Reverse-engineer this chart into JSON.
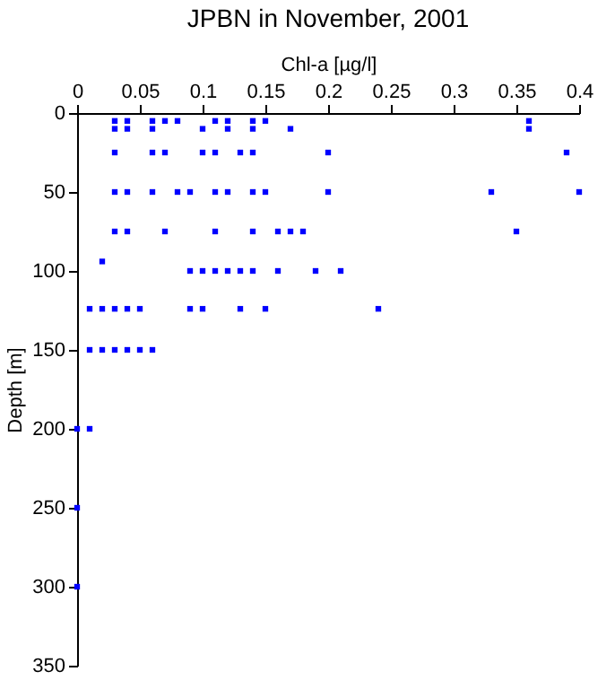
{
  "chart_data": {
    "type": "scatter",
    "title": "JPBN in November, 2001",
    "xlabel": "Chl-a [µg/l]",
    "ylabel": "Depth [m]",
    "xlim": [
      0,
      0.4
    ],
    "xticks": [
      0,
      0.05,
      0.1,
      0.15,
      0.2,
      0.25,
      0.3,
      0.35,
      0.4
    ],
    "ylim": [
      350,
      0
    ],
    "yticks": [
      0,
      50,
      100,
      150,
      200,
      250,
      300,
      350
    ],
    "marker": "square",
    "series": [
      {
        "color": "#0000ff",
        "x": [
          0.03,
          0.04,
          0.06,
          0.07,
          0.08,
          0.11,
          0.12,
          0.14,
          0.15,
          0.36,
          0.03,
          0.04,
          0.06,
          0.1,
          0.12,
          0.14,
          0.17,
          0.36,
          0.03,
          0.06,
          0.07,
          0.1,
          0.11,
          0.13,
          0.14,
          0.2,
          0.39,
          0.03,
          0.04,
          0.06,
          0.08,
          0.09,
          0.11,
          0.12,
          0.14,
          0.15,
          0.2,
          0.33,
          0.4,
          0.03,
          0.04,
          0.07,
          0.11,
          0.14,
          0.16,
          0.17,
          0.18,
          0.35,
          0.02,
          0.09,
          0.1,
          0.11,
          0.12,
          0.13,
          0.14,
          0.16,
          0.19,
          0.21,
          0.01,
          0.02,
          0.03,
          0.04,
          0.05,
          0.09,
          0.1,
          0.13,
          0.15,
          0.24,
          0.01,
          0.02,
          0.03,
          0.04,
          0.05,
          0.06,
          0,
          0.01,
          0,
          0
        ],
        "values": [
          5,
          5,
          5,
          5,
          5,
          5,
          5,
          5,
          5,
          5,
          10,
          10,
          10,
          10,
          10,
          10,
          10,
          10,
          25,
          25,
          25,
          25,
          25,
          25,
          25,
          25,
          25,
          50,
          50,
          50,
          50,
          50,
          50,
          50,
          50,
          50,
          50,
          50,
          50,
          75,
          75,
          75,
          75,
          75,
          75,
          75,
          75,
          75,
          94,
          100,
          100,
          100,
          100,
          100,
          100,
          100,
          100,
          100,
          124,
          124,
          124,
          124,
          124,
          124,
          124,
          124,
          124,
          124,
          150,
          150,
          150,
          150,
          150,
          150,
          200,
          200,
          250,
          300
        ]
      }
    ]
  }
}
